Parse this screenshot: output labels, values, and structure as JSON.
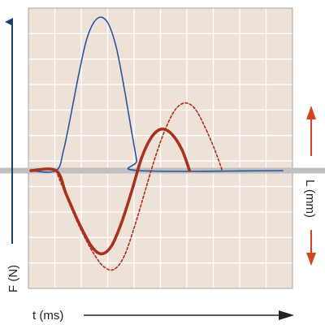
{
  "chart_data": {
    "type": "line",
    "title": "",
    "xlabel": "t (ms)",
    "ylabel_left": "F (N)",
    "ylabel_right": "L (mm)",
    "grid": true,
    "x_range": [
      0,
      10
    ],
    "y_range": [
      -4,
      6
    ],
    "series": [
      {
        "style": "solid-thin",
        "color": "#2a55a0",
        "points": [
          [
            0,
            0
          ],
          [
            1,
            0
          ],
          [
            1.3,
            0.8
          ],
          [
            1.6,
            2.2
          ],
          [
            1.9,
            3.7
          ],
          [
            2.2,
            5.0
          ],
          [
            2.5,
            5.7
          ],
          [
            2.8,
            5.9
          ],
          [
            3.1,
            5.6
          ],
          [
            3.4,
            4.7
          ],
          [
            3.7,
            3.2
          ],
          [
            4.0,
            1.5
          ],
          [
            4.2,
            0.4
          ],
          [
            4.3,
            0
          ],
          [
            10,
            0
          ]
        ]
      },
      {
        "style": "solid-thick",
        "color": "#a8321c",
        "points": [
          [
            0,
            0
          ],
          [
            1,
            0
          ],
          [
            1.4,
            -0.9
          ],
          [
            1.9,
            -2.0
          ],
          [
            2.4,
            -2.9
          ],
          [
            2.8,
            -3.2
          ],
          [
            3.2,
            -2.9
          ],
          [
            3.6,
            -2.0
          ],
          [
            4.0,
            -0.8
          ],
          [
            4.4,
            0.5
          ],
          [
            4.8,
            1.3
          ],
          [
            5.2,
            1.6
          ],
          [
            5.6,
            1.4
          ],
          [
            6.0,
            0.8
          ],
          [
            6.3,
            0
          ]
        ]
      },
      {
        "style": "dashed",
        "color": "#a8321c",
        "points": [
          [
            1,
            0
          ],
          [
            1.5,
            -1.2
          ],
          [
            2.0,
            -2.3
          ],
          [
            2.5,
            -3.2
          ],
          [
            2.9,
            -3.7
          ],
          [
            3.3,
            -3.8
          ],
          [
            3.7,
            -3.3
          ],
          [
            4.1,
            -2.2
          ],
          [
            4.5,
            -0.9
          ],
          [
            4.9,
            0.4
          ],
          [
            5.3,
            1.5
          ],
          [
            5.7,
            2.3
          ],
          [
            6.1,
            2.6
          ],
          [
            6.5,
            2.4
          ],
          [
            6.9,
            1.7
          ],
          [
            7.3,
            0.8
          ],
          [
            7.6,
            0
          ]
        ]
      }
    ],
    "colors": {
      "plot_bg": "#eee1d8",
      "grid": "#ffffff",
      "frame": "#a7a7a7",
      "baseline": "#c0c0c0",
      "left_arrow": "#1a3f72",
      "right_arrows": "#d2461e",
      "time_arrow": "#222222"
    }
  }
}
